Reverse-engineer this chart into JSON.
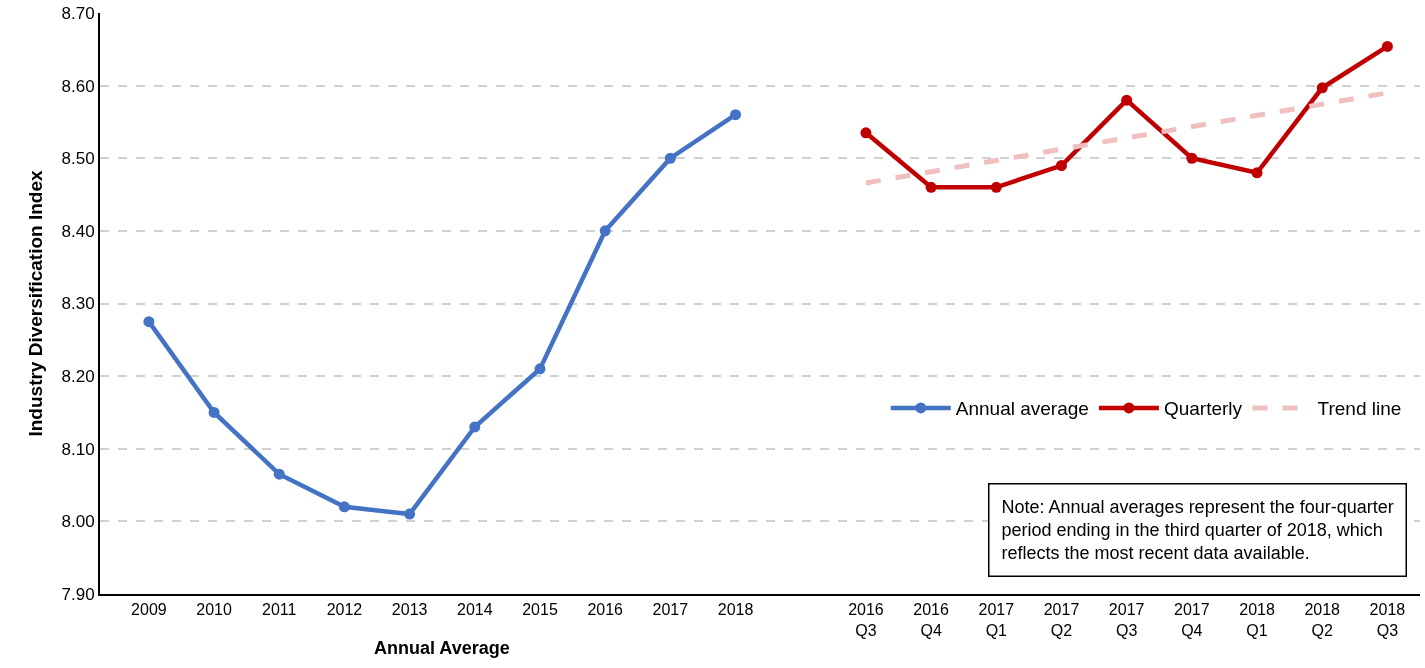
{
  "chart_data": {
    "type": "line",
    "ylabel": "Industry Diversification Index",
    "xlabel": "Annual Average",
    "categories": [
      "2009",
      "2010",
      "2011",
      "2012",
      "2013",
      "2014",
      "2015",
      "2016",
      "2017",
      "2018",
      null,
      "2016 Q3",
      "2016 Q4",
      "2017 Q1",
      "2017 Q2",
      "2017 Q3",
      "2017 Q4",
      "2018 Q1",
      "2018 Q2",
      "2018 Q3"
    ],
    "series": [
      {
        "name": "Annual average",
        "color": "#4472c4",
        "values": [
          8.275,
          8.15,
          8.065,
          8.02,
          8.01,
          8.13,
          8.21,
          8.4,
          8.5,
          8.56,
          null,
          null,
          null,
          null,
          null,
          null,
          null,
          null,
          null,
          null
        ]
      },
      {
        "name": "Quarterly",
        "color": "#c00000",
        "values": [
          null,
          null,
          null,
          null,
          null,
          null,
          null,
          null,
          null,
          null,
          null,
          8.535,
          8.46,
          8.46,
          8.49,
          8.58,
          8.5,
          8.48,
          8.597,
          8.654
        ]
      },
      {
        "name": "Trend line",
        "color": "#f0c0c0",
        "type": "line",
        "line_style": "dashed",
        "marker": "none",
        "x": [
          "2016 Q3",
          "2018 Q3"
        ],
        "values": [
          8.466,
          8.59
        ]
      }
    ],
    "ylim": [
      7.9,
      8.7
    ],
    "yticks": [
      {
        "value": 7.9,
        "label": "7.90"
      },
      {
        "value": 8.0,
        "label": "8.00"
      },
      {
        "value": 8.1,
        "label": "8.10"
      },
      {
        "value": 8.2,
        "label": "8.20"
      },
      {
        "value": 8.3,
        "label": "8.30"
      },
      {
        "value": 8.4,
        "label": "8.40"
      },
      {
        "value": 8.5,
        "label": "8.50"
      },
      {
        "value": 8.6,
        "label": "8.60"
      },
      {
        "value": 8.7,
        "label": "8.70"
      }
    ],
    "grid": "y",
    "legend": "right",
    "marker": "circle",
    "line_style": "solid",
    "annotations": [
      "Note: Annual averages represent the four-quarter period ending in the third quarter of 2018, which reflects the most recent data available."
    ]
  }
}
